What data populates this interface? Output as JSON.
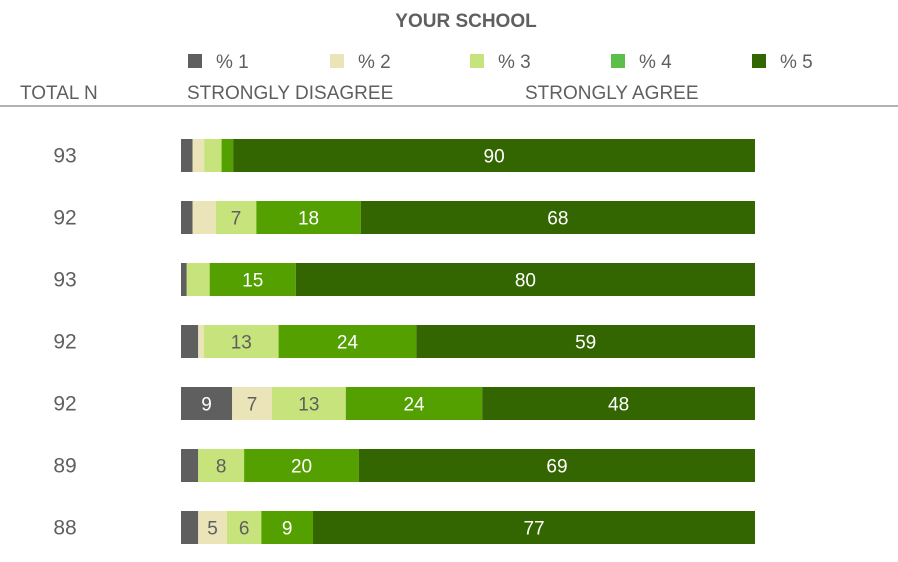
{
  "header": {
    "title": "YOUR SCHOOL",
    "total_n_label": "TOTAL N",
    "left_scale_label": "STRONGLY DISAGREE",
    "right_scale_label": "STRONGLY AGREE"
  },
  "chart_data": {
    "type": "bar",
    "orientation": "horizontal",
    "stacked": true,
    "percent_scale": true,
    "series": [
      {
        "name": "% 1",
        "color": "#5f5f5f",
        "values": [
          2,
          2,
          1,
          3,
          9,
          3,
          3
        ]
      },
      {
        "name": "% 2",
        "color": "#ebe4b9",
        "values": [
          2,
          4,
          0,
          1,
          7,
          0,
          5
        ]
      },
      {
        "name": "% 3",
        "color": "#c6e37c",
        "values": [
          3,
          7,
          4,
          13,
          13,
          8,
          6
        ]
      },
      {
        "name": "% 4",
        "color": "#53a000",
        "values": [
          2,
          18,
          15,
          24,
          24,
          20,
          9
        ]
      },
      {
        "name": "% 5",
        "color": "#336600",
        "values": [
          90,
          68,
          80,
          59,
          48,
          69,
          77
        ]
      }
    ],
    "legend_colors": [
      "#5f5f5f",
      "#ebe4b9",
      "#c6e37c",
      "#5cbf4a",
      "#336600"
    ],
    "label_colors": [
      "#ffffff",
      "#5f5f5f",
      "#5f5f5f",
      "#ffffff",
      "#ffffff"
    ],
    "data_labels": [
      [
        "",
        "",
        "",
        "",
        "90"
      ],
      [
        "",
        "",
        "7",
        "18",
        "68"
      ],
      [
        "",
        "",
        "",
        "15",
        "80"
      ],
      [
        "",
        "",
        "13",
        "24",
        "59"
      ],
      [
        "9",
        "7",
        "13",
        "24",
        "48"
      ],
      [
        "",
        "",
        "8",
        "20",
        "69"
      ],
      [
        "",
        "5",
        "6",
        "9",
        "77"
      ]
    ],
    "total_n": [
      "93",
      "92",
      "93",
      "92",
      "92",
      "89",
      "88"
    ],
    "legend_position": "top"
  }
}
